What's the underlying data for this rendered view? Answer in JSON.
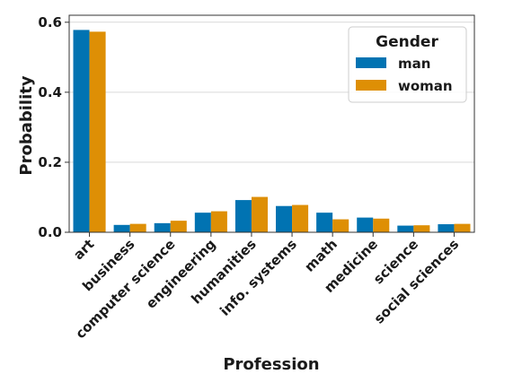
{
  "chart_data": {
    "type": "bar",
    "title": "",
    "xlabel": "Profession",
    "ylabel": "Probability",
    "ylim": [
      0,
      0.62
    ],
    "yticks": [
      0.0,
      0.2,
      0.4,
      0.6
    ],
    "ytick_labels": [
      "0.0",
      "0.2",
      "0.4",
      "0.6"
    ],
    "grid": true,
    "legend_position": "top-right",
    "legend_title": "Gender",
    "categories": [
      "art",
      "business",
      "computer science",
      "engineering",
      "humanities",
      "info. systems",
      "math",
      "medicine",
      "science",
      "social sciences"
    ],
    "series": [
      {
        "name": "man",
        "color": "#0173b2",
        "values": [
          0.578,
          0.021,
          0.026,
          0.056,
          0.092,
          0.075,
          0.056,
          0.042,
          0.019,
          0.023
        ]
      },
      {
        "name": "woman",
        "color": "#de8f05",
        "values": [
          0.573,
          0.024,
          0.033,
          0.06,
          0.101,
          0.078,
          0.037,
          0.039,
          0.02,
          0.024
        ]
      }
    ]
  }
}
